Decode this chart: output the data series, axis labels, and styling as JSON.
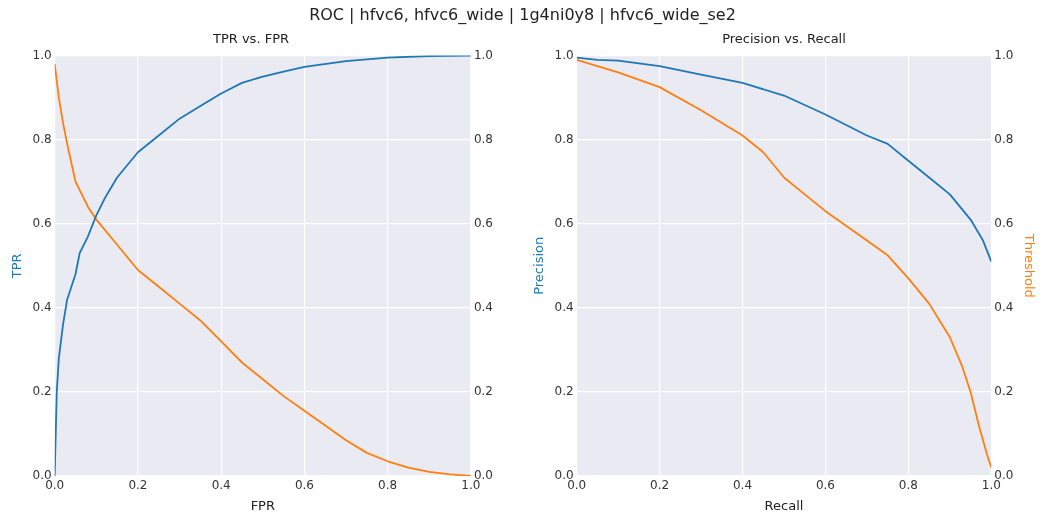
{
  "chart_data": [
    {
      "type": "line",
      "title": "TPR vs. FPR",
      "xlabel": "FPR",
      "ylabel": "TPR",
      "annotations": [
        "ROC | hfvc6, hfvc6_wide | 1g4ni0y8 | hfvc6_wide_se2"
      ],
      "grid": true,
      "xlim": [
        0,
        1
      ],
      "xticks": [
        {
          "value": 0,
          "label": "0.0"
        },
        {
          "value": 0.2,
          "label": "0.2"
        },
        {
          "value": 0.4,
          "label": "0.4"
        },
        {
          "value": 0.6,
          "label": "0.6"
        },
        {
          "value": 0.8,
          "label": "0.8"
        },
        {
          "value": 1,
          "label": "1.0"
        }
      ],
      "ylim": [
        0,
        1
      ],
      "yticks": [
        {
          "value": 0,
          "label": "0.0"
        },
        {
          "value": 0.2,
          "label": "0.2"
        },
        {
          "value": 0.4,
          "label": "0.4"
        },
        {
          "value": 0.6,
          "label": "0.6"
        },
        {
          "value": 0.8,
          "label": "0.8"
        },
        {
          "value": 1,
          "label": "1.0"
        }
      ],
      "y2lim": [
        0,
        1
      ],
      "y2ticks": [
        {
          "value": 0,
          "label": "0.0"
        },
        {
          "value": 0.2,
          "label": "0.2"
        },
        {
          "value": 0.4,
          "label": "0.4"
        },
        {
          "value": 0.6,
          "label": "0.6"
        },
        {
          "value": 0.8,
          "label": "0.8"
        },
        {
          "value": 1,
          "label": "1.0"
        }
      ],
      "series": [
        {
          "color": "#1f77b4",
          "x": [
            0,
            0.005,
            0.01,
            0.02,
            0.03,
            0.05,
            0.06,
            0.08,
            0.1,
            0.12,
            0.15,
            0.2,
            0.25,
            0.3,
            0.35,
            0.4,
            0.45,
            0.5,
            0.55,
            0.6,
            0.7,
            0.8,
            0.9,
            1
          ],
          "values": [
            0,
            0.2,
            0.28,
            0.36,
            0.42,
            0.48,
            0.53,
            0.57,
            0.62,
            0.66,
            0.71,
            0.77,
            0.81,
            0.85,
            0.88,
            0.91,
            0.935,
            0.95,
            0.962,
            0.973,
            0.987,
            0.995,
            0.999,
            1
          ]
        },
        {
          "color": "#ff7f0e",
          "axis": "y2",
          "x": [
            0,
            0.01,
            0.02,
            0.03,
            0.05,
            0.08,
            0.1,
            0.15,
            0.2,
            0.25,
            0.3,
            0.35,
            0.4,
            0.45,
            0.5,
            0.55,
            0.6,
            0.65,
            0.7,
            0.75,
            0.8,
            0.85,
            0.9,
            0.95,
            1
          ],
          "values": [
            0.98,
            0.9,
            0.84,
            0.79,
            0.7,
            0.64,
            0.61,
            0.55,
            0.49,
            0.45,
            0.41,
            0.37,
            0.32,
            0.27,
            0.23,
            0.19,
            0.155,
            0.12,
            0.085,
            0.055,
            0.035,
            0.02,
            0.01,
            0.004,
            0
          ]
        }
      ]
    },
    {
      "type": "line",
      "title": "Precision vs. Recall",
      "xlabel": "Recall",
      "ylabel": "Precision",
      "y2label": "Threshold",
      "grid": true,
      "xlim": [
        0,
        1
      ],
      "xticks": [
        {
          "value": 0,
          "label": "0.0"
        },
        {
          "value": 0.2,
          "label": "0.2"
        },
        {
          "value": 0.4,
          "label": "0.4"
        },
        {
          "value": 0.6,
          "label": "0.6"
        },
        {
          "value": 0.8,
          "label": "0.8"
        },
        {
          "value": 1,
          "label": "1.0"
        }
      ],
      "ylim": [
        0,
        1
      ],
      "yticks": [
        {
          "value": 0,
          "label": "0.0"
        },
        {
          "value": 0.2,
          "label": "0.2"
        },
        {
          "value": 0.4,
          "label": "0.4"
        },
        {
          "value": 0.6,
          "label": "0.6"
        },
        {
          "value": 0.8,
          "label": "0.8"
        },
        {
          "value": 1,
          "label": "1.0"
        }
      ],
      "y2lim": [
        0,
        1
      ],
      "y2ticks": [
        {
          "value": 0,
          "label": "0.0"
        },
        {
          "value": 0.2,
          "label": "0.2"
        },
        {
          "value": 0.4,
          "label": "0.4"
        },
        {
          "value": 0.6,
          "label": "0.6"
        },
        {
          "value": 0.8,
          "label": "0.8"
        },
        {
          "value": 1,
          "label": "1.0"
        }
      ],
      "series": [
        {
          "color": "#1f77b4",
          "x": [
            0,
            0.05,
            0.1,
            0.2,
            0.3,
            0.4,
            0.5,
            0.6,
            0.7,
            0.75,
            0.8,
            0.85,
            0.9,
            0.95,
            0.98,
            1
          ],
          "values": [
            0.995,
            0.99,
            0.988,
            0.975,
            0.955,
            0.935,
            0.905,
            0.86,
            0.81,
            0.79,
            0.75,
            0.71,
            0.67,
            0.61,
            0.56,
            0.51
          ]
        },
        {
          "color": "#ff7f0e",
          "axis": "y2",
          "x": [
            0,
            0.1,
            0.2,
            0.3,
            0.4,
            0.45,
            0.5,
            0.55,
            0.6,
            0.7,
            0.75,
            0.8,
            0.85,
            0.9,
            0.93,
            0.95,
            0.97,
            0.99,
            1
          ],
          "values": [
            0.99,
            0.96,
            0.925,
            0.87,
            0.81,
            0.77,
            0.71,
            0.67,
            0.63,
            0.56,
            0.525,
            0.47,
            0.41,
            0.33,
            0.26,
            0.2,
            0.12,
            0.05,
            0.02
          ]
        }
      ]
    }
  ]
}
